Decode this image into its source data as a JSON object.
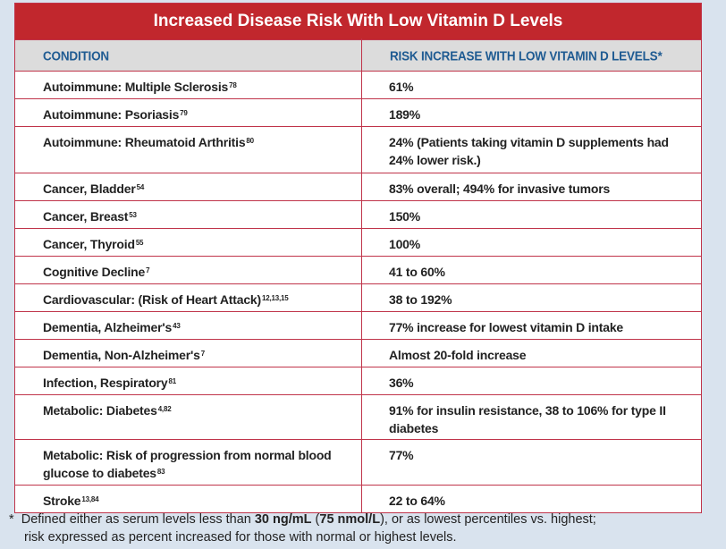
{
  "title": "Increased Disease Risk With Low Vitamin D Levels",
  "headers": {
    "condition": "CONDITION",
    "risk": "RISK INCREASE WITH LOW VITAMIN D LEVELS*"
  },
  "rows": [
    {
      "condition": "Autoimmune: Multiple Sclerosis",
      "ref": "78",
      "risk": "61%",
      "h": 30
    },
    {
      "condition": "Autoimmune: Psoriasis",
      "ref": "79",
      "risk": "189%",
      "h": 30
    },
    {
      "condition": "Autoimmune: Rheumatoid Arthritis",
      "ref": "80",
      "risk": "24% (Patients taking vitamin D supplements had 24% lower risk.)",
      "h": 51
    },
    {
      "condition": "Cancer, Bladder",
      "ref": "54",
      "risk": "83% overall; 494% for invasive tumors",
      "h": 30
    },
    {
      "condition": "Cancer, Breast",
      "ref": "53",
      "risk": "150%",
      "h": 30
    },
    {
      "condition": "Cancer, Thyroid",
      "ref": "55",
      "risk": "100%",
      "h": 30
    },
    {
      "condition": "Cognitive Decline",
      "ref": "7",
      "risk": "41 to 60%",
      "h": 30
    },
    {
      "condition": "Cardiovascular: (Risk of Heart Attack)",
      "ref": "12,13,15",
      "risk": "38 to 192%",
      "h": 30
    },
    {
      "condition": "Dementia, Alzheimer's",
      "ref": "43",
      "risk": "77% increase for lowest vitamin D intake",
      "h": 30
    },
    {
      "condition": "Dementia, Non-Alzheimer's",
      "ref": "7",
      "risk": "Almost 20-fold increase",
      "h": 30
    },
    {
      "condition": "Infection, Respiratory",
      "ref": "81",
      "risk": "36%",
      "h": 30
    },
    {
      "condition": "Metabolic: Diabetes",
      "ref": "4,82",
      "risk": "91% for insulin resistance, 38 to 106% for type II diabetes",
      "h": 49
    },
    {
      "condition": "Metabolic: Risk of progression from normal blood glucose to diabetes",
      "ref": "83",
      "risk": "77%",
      "h": 50
    },
    {
      "condition": "Stroke",
      "ref": "13,84",
      "risk": "22 to 64%",
      "h": 30
    }
  ],
  "footnote": {
    "star": "*",
    "pre": "Defined either as serum levels less than ",
    "b1": "30 ng/mL",
    "mid": " (",
    "b2": "75 nmol/L",
    "post": "), or as lowest percentiles vs. highest;",
    "line2": "risk expressed as percent increased for those with normal or highest levels."
  }
}
